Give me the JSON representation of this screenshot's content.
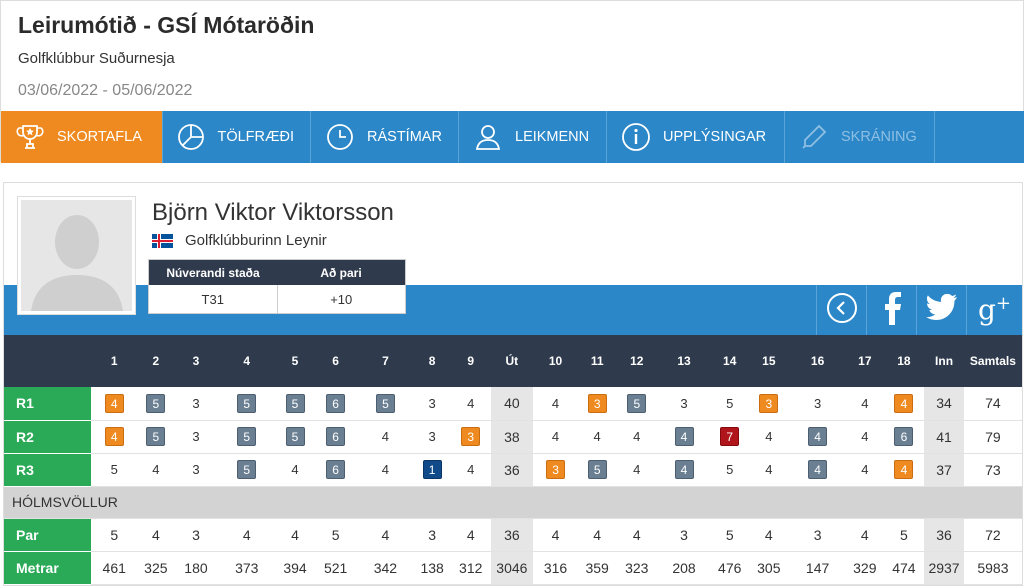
{
  "header": {
    "title": "Leirumótið - GSÍ Mótaröðin",
    "club": "Golfklúbbur Suðurnesja",
    "dates": "03/06/2022 - 05/06/2022"
  },
  "nav": [
    {
      "label": "SKORTAFLA",
      "icon": "trophy-icon",
      "active": true
    },
    {
      "label": "TÖLFRÆÐI",
      "icon": "pie-chart-icon"
    },
    {
      "label": "RÁSTÍMAR",
      "icon": "clock-icon"
    },
    {
      "label": "LEIKMENN",
      "icon": "person-icon"
    },
    {
      "label": "UPPLÝSINGAR",
      "icon": "info-icon"
    },
    {
      "label": "SKRÁNING",
      "icon": "pencil-icon",
      "disabled": true
    }
  ],
  "player": {
    "name": "Björn Viktor Viktorsson",
    "club": "Golfklúbburinn Leynir",
    "status_header": [
      "Núverandi staða",
      "Að pari"
    ],
    "status_values": [
      "T31",
      "+10"
    ]
  },
  "social": [
    "back-icon",
    "facebook-icon",
    "twitter-icon",
    "google-plus-icon"
  ],
  "table": {
    "headers": [
      "",
      "1",
      "2",
      "3",
      "4",
      "5",
      "6",
      "7",
      "8",
      "9",
      "Út",
      "10",
      "11",
      "12",
      "13",
      "14",
      "15",
      "16",
      "17",
      "18",
      "Inn",
      "Samtals"
    ],
    "rounds": [
      {
        "label": "R1",
        "front": [
          "4",
          "5",
          "3",
          "5",
          "5",
          "6",
          "5",
          "3",
          "4"
        ],
        "out": "40",
        "back": [
          "4",
          "3",
          "5",
          "3",
          "5",
          "3",
          "3",
          "4",
          "4"
        ],
        "in": "34",
        "total": "74"
      },
      {
        "label": "R2",
        "front": [
          "4",
          "5",
          "3",
          "5",
          "5",
          "6",
          "4",
          "3",
          "3"
        ],
        "out": "38",
        "back": [
          "4",
          "4",
          "4",
          "4",
          "7",
          "4",
          "4",
          "4",
          "6"
        ],
        "in": "41",
        "total": "79"
      },
      {
        "label": "R3",
        "front": [
          "5",
          "4",
          "3",
          "5",
          "4",
          "6",
          "4",
          "1",
          "4"
        ],
        "out": "36",
        "back": [
          "3",
          "5",
          "4",
          "4",
          "5",
          "4",
          "4",
          "4",
          "4"
        ],
        "in": "37",
        "total": "73"
      }
    ],
    "course": "HÓLMSVÖLLUR",
    "par": {
      "label": "Par",
      "front": [
        "5",
        "4",
        "3",
        "4",
        "4",
        "5",
        "4",
        "3",
        "4"
      ],
      "out": "36",
      "back": [
        "4",
        "4",
        "4",
        "3",
        "5",
        "4",
        "3",
        "4",
        "5"
      ],
      "in": "36",
      "total": "72"
    },
    "meters": {
      "label": "Metrar",
      "front": [
        "461",
        "325",
        "180",
        "373",
        "394",
        "521",
        "342",
        "138",
        "312"
      ],
      "out": "3046",
      "back": [
        "316",
        "359",
        "323",
        "208",
        "476",
        "305",
        "147",
        "329",
        "474"
      ],
      "in": "2937",
      "total": "5983"
    }
  }
}
